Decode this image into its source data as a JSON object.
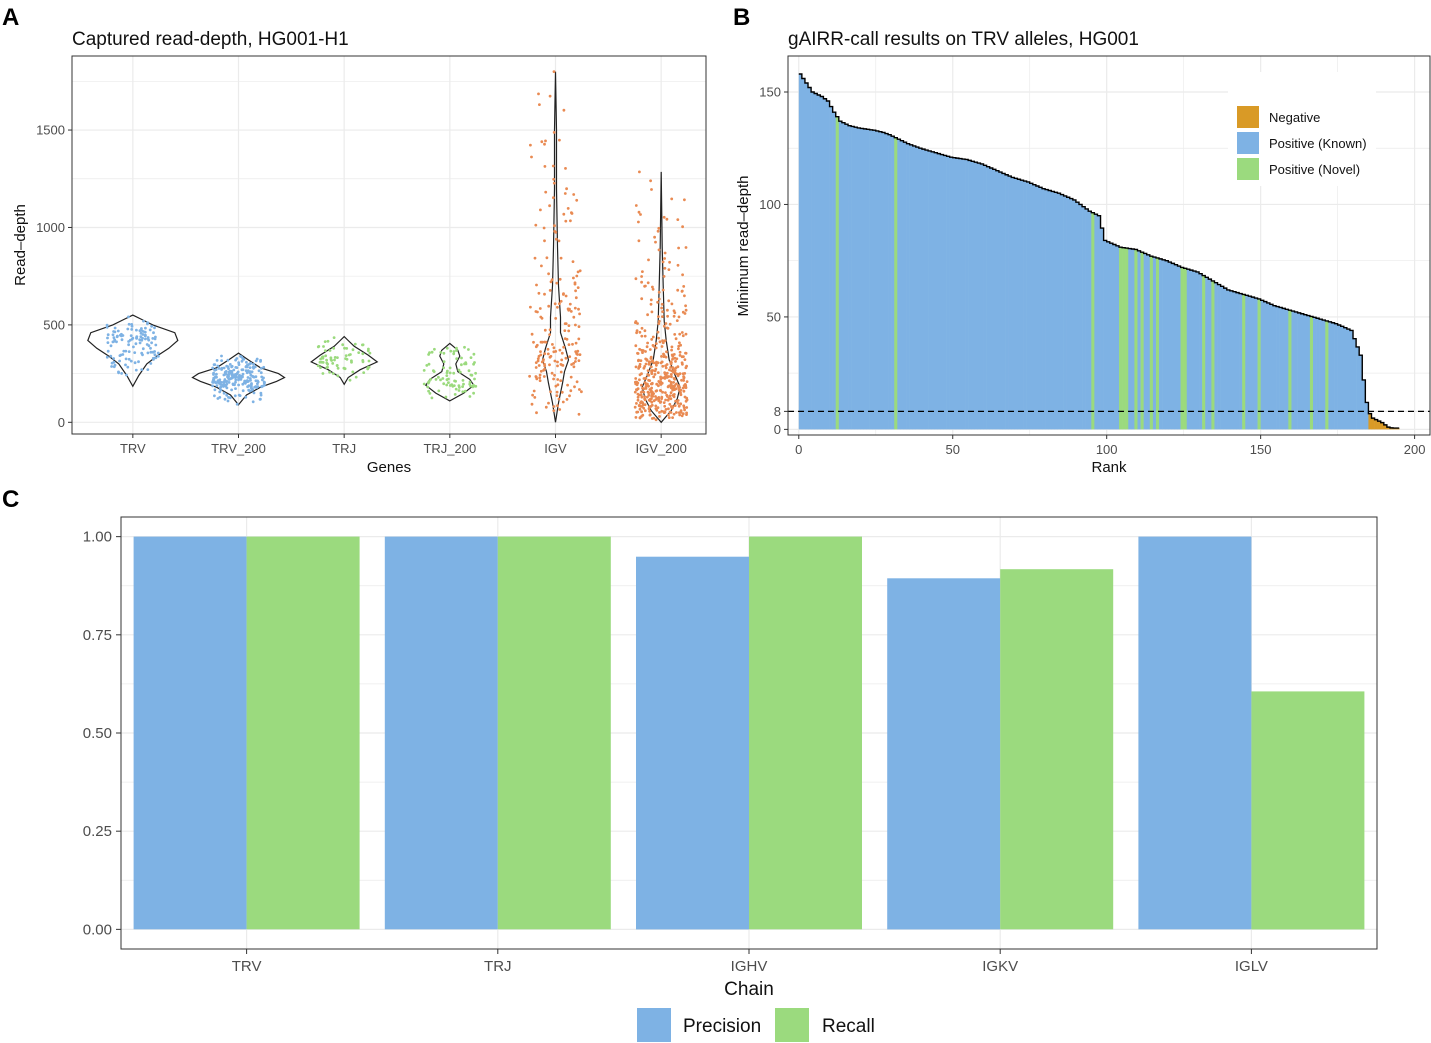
{
  "panels": {
    "a": "A",
    "b": "B",
    "c": "C"
  },
  "colors": {
    "blue": "#7eb2e4",
    "green": "#9bda7e",
    "orange": "#e98a52",
    "gold": "#d99a26",
    "grid": "#ebebeb",
    "border": "#333333"
  },
  "chart_data": [
    {
      "type": "violin",
      "title": "Captured read-depth, HG001-H1",
      "xlabel": "Genes",
      "ylabel": "Read–depth",
      "ylim": [
        -60,
        1880
      ],
      "yticks": [
        0,
        500,
        1000,
        1500
      ],
      "categories": [
        "TRV",
        "TRV_200",
        "TRJ",
        "TRJ_200",
        "IGV",
        "IGV_200"
      ],
      "category_color": [
        "blue",
        "blue",
        "green",
        "green",
        "orange",
        "orange"
      ],
      "groups": [
        {
          "name": "TRV",
          "min": 185,
          "max": 550,
          "median": 400,
          "n": 120,
          "profile": [
            [
              185,
              0
            ],
            [
              240,
              6
            ],
            [
              300,
              14
            ],
            [
              340,
              24
            ],
            [
              380,
              36
            ],
            [
              420,
              45
            ],
            [
              460,
              42
            ],
            [
              500,
              20
            ],
            [
              530,
              8
            ],
            [
              550,
              0
            ]
          ]
        },
        {
          "name": "TRV_200",
          "min": 90,
          "max": 355,
          "median": 230,
          "n": 230,
          "profile": [
            [
              90,
              0
            ],
            [
              140,
              8
            ],
            [
              180,
              22
            ],
            [
              210,
              38
            ],
            [
              230,
              46
            ],
            [
              250,
              40
            ],
            [
              280,
              22
            ],
            [
              320,
              10
            ],
            [
              355,
              0
            ]
          ]
        },
        {
          "name": "TRJ",
          "min": 195,
          "max": 440,
          "median": 310,
          "n": 70,
          "profile": [
            [
              195,
              0
            ],
            [
              230,
              4
            ],
            [
              270,
              16
            ],
            [
              310,
              33
            ],
            [
              345,
              24
            ],
            [
              390,
              10
            ],
            [
              420,
              4
            ],
            [
              440,
              0
            ]
          ]
        },
        {
          "name": "TRJ_200",
          "min": 110,
          "max": 405,
          "median": 200,
          "n": 90,
          "profile": [
            [
              110,
              0
            ],
            [
              150,
              14
            ],
            [
              190,
              24
            ],
            [
              220,
              20
            ],
            [
              260,
              8
            ],
            [
              300,
              6
            ],
            [
              340,
              10
            ],
            [
              370,
              8
            ],
            [
              405,
              0
            ]
          ]
        },
        {
          "name": "IGV",
          "min": 0,
          "max": 1800,
          "median": 330,
          "n": 200,
          "profile": [
            [
              0,
              0
            ],
            [
              100,
              3
            ],
            [
              200,
              7
            ],
            [
              260,
              9
            ],
            [
              320,
              13
            ],
            [
              380,
              10
            ],
            [
              460,
              5
            ],
            [
              540,
              5
            ],
            [
              620,
              4
            ],
            [
              700,
              3
            ],
            [
              900,
              2
            ],
            [
              1200,
              1
            ],
            [
              1500,
              1
            ],
            [
              1800,
              0
            ]
          ]
        },
        {
          "name": "IGV_200",
          "min": 0,
          "max": 1285,
          "median": 170,
          "n": 450,
          "profile": [
            [
              0,
              0
            ],
            [
              60,
              10
            ],
            [
              120,
              16
            ],
            [
              180,
              19
            ],
            [
              240,
              14
            ],
            [
              320,
              8
            ],
            [
              420,
              5
            ],
            [
              520,
              3
            ],
            [
              700,
              2
            ],
            [
              900,
              1
            ],
            [
              1285,
              0
            ]
          ]
        }
      ]
    },
    {
      "type": "area",
      "title": "gAIRR-call results on TRV alleles, HG001",
      "xlabel": "Rank",
      "ylabel": "Minimum read–depth",
      "xlim": [
        -3.5,
        205
      ],
      "ylim": [
        -2.5,
        166
      ],
      "xticks": [
        0,
        50,
        100,
        150,
        200
      ],
      "yticks": [
        0,
        8,
        50,
        100,
        150
      ],
      "threshold": 8,
      "n_alleles": 195,
      "curve": [
        [
          1,
          158
        ],
        [
          3,
          154
        ],
        [
          5,
          150
        ],
        [
          8,
          148
        ],
        [
          10,
          146
        ],
        [
          12,
          141
        ],
        [
          14,
          137
        ],
        [
          17,
          135
        ],
        [
          20,
          134
        ],
        [
          25,
          133
        ],
        [
          28,
          132
        ],
        [
          30,
          131
        ],
        [
          33,
          129
        ],
        [
          36,
          127
        ],
        [
          40,
          125
        ],
        [
          45,
          123
        ],
        [
          50,
          121
        ],
        [
          55,
          120
        ],
        [
          60,
          118
        ],
        [
          65,
          115
        ],
        [
          70,
          112
        ],
        [
          75,
          110
        ],
        [
          80,
          107
        ],
        [
          85,
          105
        ],
        [
          90,
          102
        ],
        [
          95,
          97
        ],
        [
          98,
          95
        ],
        [
          100,
          84
        ],
        [
          105,
          81
        ],
        [
          110,
          80
        ],
        [
          115,
          77
        ],
        [
          120,
          75
        ],
        [
          125,
          72
        ],
        [
          130,
          70
        ],
        [
          135,
          66
        ],
        [
          140,
          62
        ],
        [
          145,
          60
        ],
        [
          150,
          58
        ],
        [
          155,
          55
        ],
        [
          160,
          53
        ],
        [
          165,
          51
        ],
        [
          170,
          49
        ],
        [
          175,
          47
        ],
        [
          180,
          44
        ],
        [
          183,
          33
        ],
        [
          184,
          22
        ],
        [
          185,
          12
        ],
        [
          186,
          7
        ],
        [
          187,
          5
        ],
        [
          190,
          3
        ],
        [
          192,
          1
        ],
        [
          195,
          0
        ]
      ],
      "negative_from": 186,
      "novel_ranks": [
        13,
        32,
        96,
        105,
        106,
        107,
        110,
        112,
        115,
        117,
        125,
        126,
        132,
        135,
        145,
        150,
        160,
        167,
        172
      ],
      "legend": [
        "Negative",
        "Positive (Known)",
        "Positive (Novel)"
      ]
    },
    {
      "type": "bar",
      "xlabel": "Chain",
      "ylabel": "",
      "ylim": [
        -0.05,
        1.05
      ],
      "yticks": [
        "0.00",
        "0.25",
        "0.50",
        "0.75",
        "1.00"
      ],
      "categories": [
        "TRV",
        "TRJ",
        "IGHV",
        "IGKV",
        "IGLV"
      ],
      "series": [
        {
          "name": "Precision",
          "values": [
            1.0,
            1.0,
            0.949,
            0.894,
            1.0
          ]
        },
        {
          "name": "Recall",
          "values": [
            1.0,
            1.0,
            1.0,
            0.917,
            0.606
          ]
        }
      ]
    }
  ]
}
